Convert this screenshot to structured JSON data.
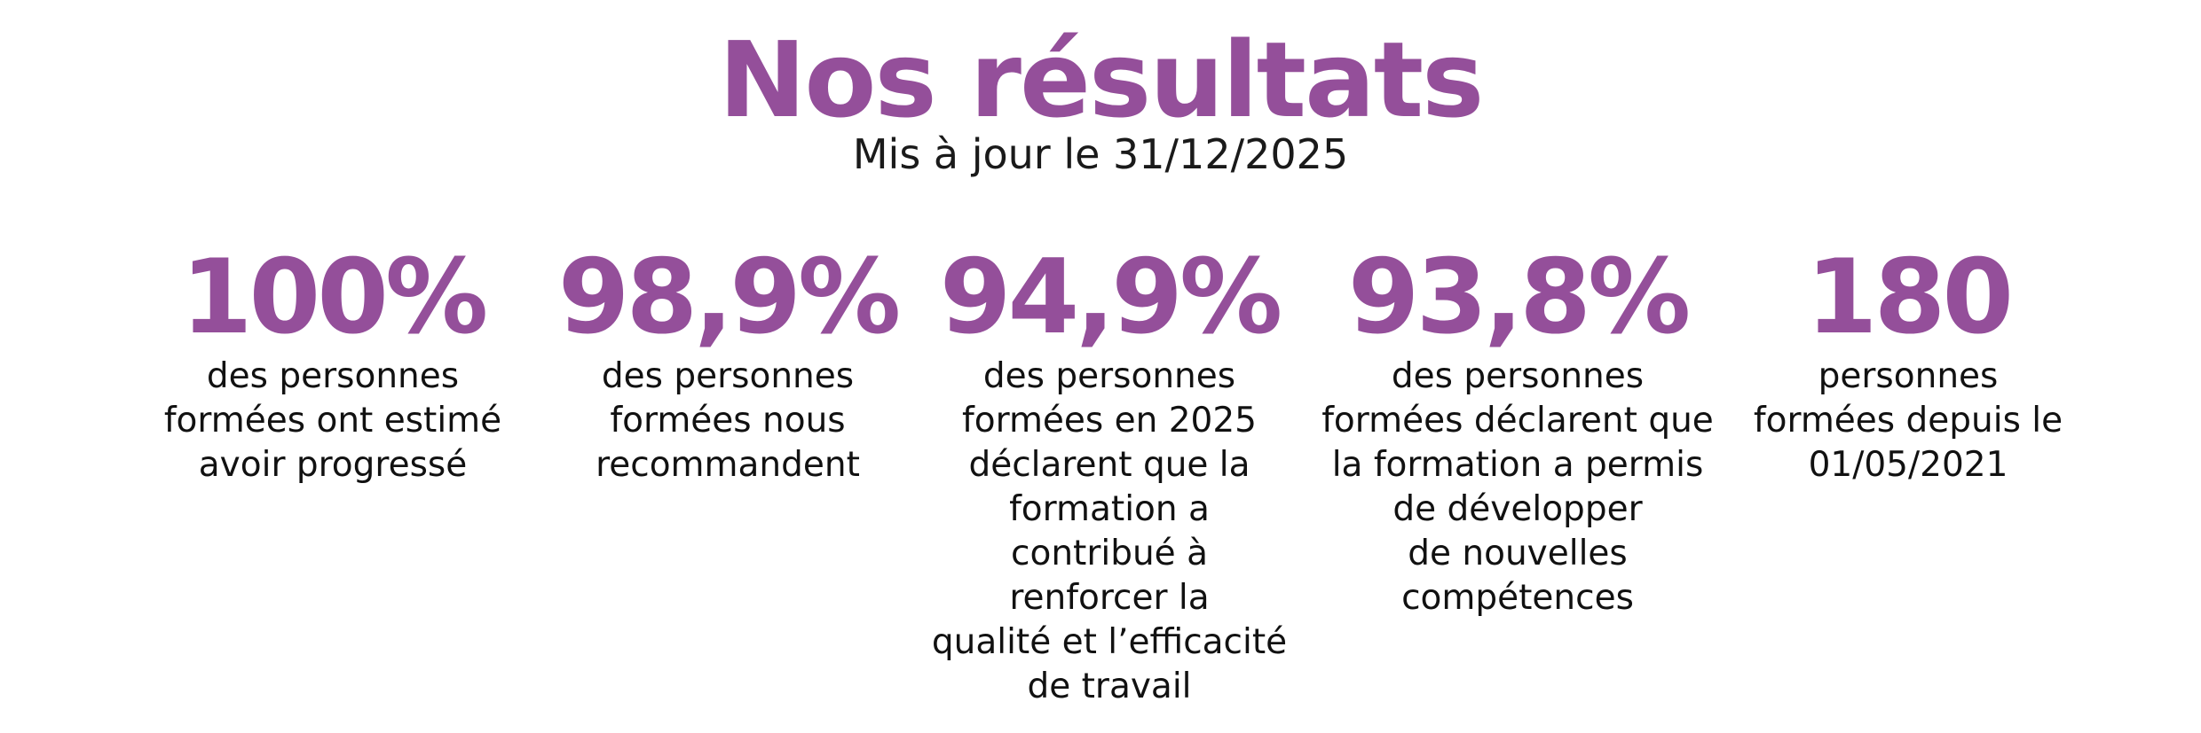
{
  "title": "Nos résultats",
  "subtitle": "Mis à jour le 31/12/2025",
  "accent_color": "#944f9a",
  "stats": [
    {
      "value": "100%",
      "lines": [
        "des personnes",
        "formées ont estimé",
        "avoir progressé"
      ]
    },
    {
      "value": "98,9%",
      "lines": [
        "des personnes",
        "formées nous",
        "recommandent"
      ]
    },
    {
      "value": "94,9%",
      "lines": [
        "des personnes",
        "formées en 2025",
        "déclarent que la",
        "formation a",
        "contribué à",
        "renforcer la",
        "qualité et l’efficacité",
        "de travail"
      ]
    },
    {
      "value": "93,8%",
      "lines": [
        "des personnes",
        "formées déclarent que",
        "la formation a permis",
        "de développer",
        "de nouvelles",
        "compétences"
      ]
    },
    {
      "value": "180",
      "lines": [
        "personnes",
        "formées depuis le",
        "01/05/2021"
      ]
    }
  ]
}
